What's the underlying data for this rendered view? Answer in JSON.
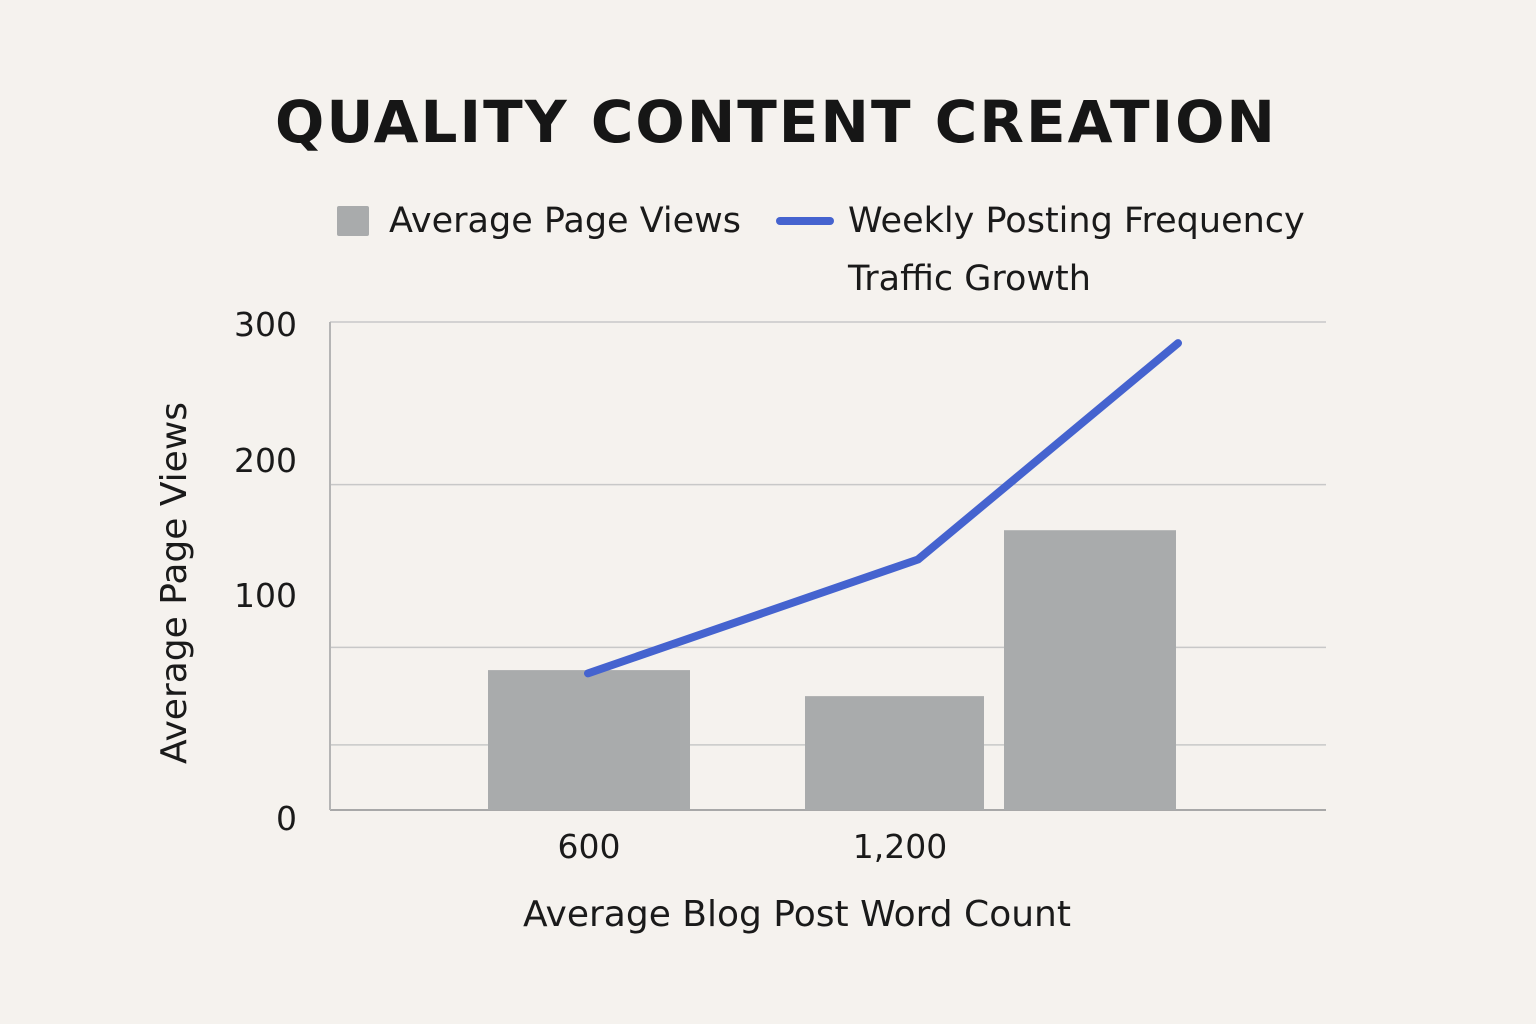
{
  "chart_data": {
    "type": "bar",
    "title": "QUALITY CONTENT CREATION",
    "xlabel": "Average Blog Post Word Count",
    "ylabel": "Average Page Views",
    "ylim": [
      0,
      300
    ],
    "yticks": [
      0,
      100,
      200,
      300
    ],
    "categories": [
      "600",
      "1,200",
      ""
    ],
    "series": [
      {
        "name": "Average Page Views",
        "type": "bar",
        "color": "#a9abac",
        "values": [
          86,
          70,
          172
        ]
      },
      {
        "name": "Weekly Posting Frequency",
        "type": "line",
        "color": "#4563cf",
        "values": [
          84,
          154,
          287
        ]
      }
    ],
    "legend": {
      "placement": "top",
      "items": [
        {
          "label": "Average Page Views",
          "color": "#a9abac",
          "shape": "square"
        },
        {
          "label": "Weekly Posting Frequency",
          "color": "#4563cf",
          "shape": "line"
        }
      ],
      "extra_text": "Traffic Growth"
    },
    "grid": true
  }
}
